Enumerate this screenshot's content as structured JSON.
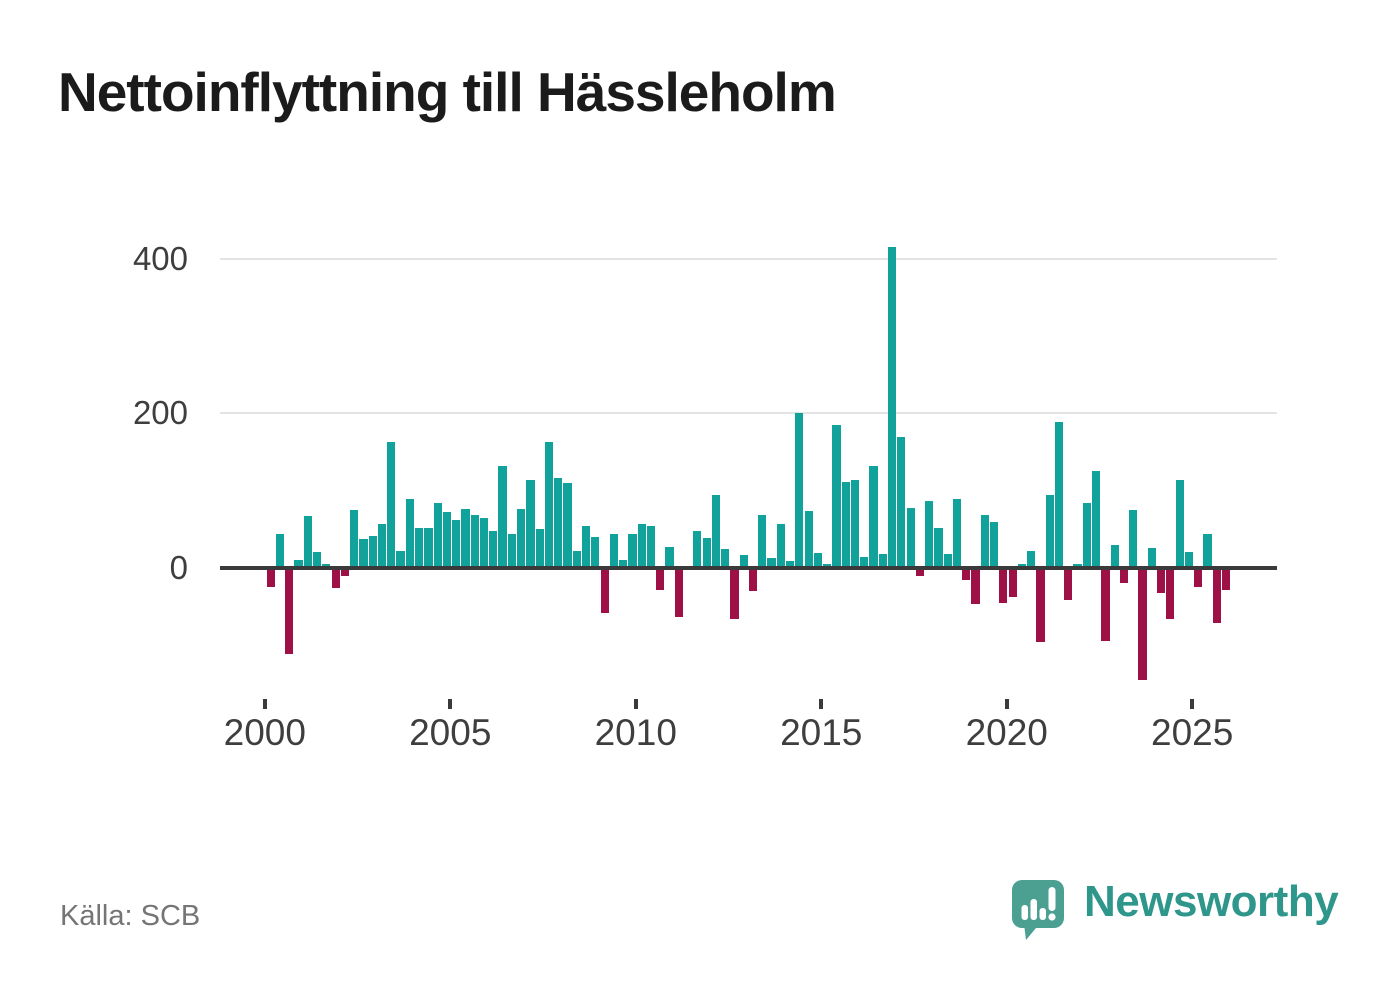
{
  "title": "Nettoinflyttning till Hässleholm",
  "source": "Källa: SCB",
  "brand": {
    "name": "Newsworthy",
    "icon": "newsworthy-speech-bubble-bar-chart-icon",
    "icon_color": "#4ba092",
    "wordmark_color": "#2f968b"
  },
  "chart_data": {
    "type": "bar",
    "title": "Nettoinflyttning till Hässleholm",
    "frequency": "quarterly",
    "x_tick_labels": [
      "2000",
      "2005",
      "2010",
      "2015",
      "2020",
      "2025"
    ],
    "x_tick_years": [
      2000,
      2005,
      2010,
      2015,
      2020,
      2025
    ],
    "y_ticks": [
      0,
      200,
      400
    ],
    "ylim": [
      -160,
      420
    ],
    "grid": "horizontal-only",
    "legend": "none",
    "colors": {
      "positive": "#10a29b",
      "negative": "#9d1146"
    },
    "start_year": 2000,
    "series_by_year": [
      {
        "year": 2000,
        "quarters": [
          -22,
          43,
          -110,
          10
        ]
      },
      {
        "year": 2001,
        "quarters": [
          67,
          20,
          4,
          -24
        ]
      },
      {
        "year": 2002,
        "quarters": [
          -8,
          74,
          37,
          41
        ]
      },
      {
        "year": 2003,
        "quarters": [
          56,
          163,
          21,
          89
        ]
      },
      {
        "year": 2004,
        "quarters": [
          51,
          51,
          84,
          72
        ]
      },
      {
        "year": 2005,
        "quarters": [
          62,
          76,
          68,
          64
        ]
      },
      {
        "year": 2006,
        "quarters": [
          48,
          131,
          43,
          76
        ]
      },
      {
        "year": 2007,
        "quarters": [
          114,
          50,
          163,
          116
        ]
      },
      {
        "year": 2008,
        "quarters": [
          110,
          21,
          54,
          39
        ]
      },
      {
        "year": 2009,
        "quarters": [
          -56,
          44,
          10,
          44
        ]
      },
      {
        "year": 2010,
        "quarters": [
          56,
          54,
          -26,
          26
        ]
      },
      {
        "year": 2011,
        "quarters": [
          -61,
          1,
          48,
          38
        ]
      },
      {
        "year": 2012,
        "quarters": [
          94,
          24,
          -64,
          16
        ]
      },
      {
        "year": 2013,
        "quarters": [
          -28,
          68,
          13,
          57
        ]
      },
      {
        "year": 2014,
        "quarters": [
          8,
          200,
          73,
          19
        ]
      },
      {
        "year": 2015,
        "quarters": [
          5,
          185,
          111,
          114
        ]
      },
      {
        "year": 2016,
        "quarters": [
          14,
          132,
          17,
          415
        ]
      },
      {
        "year": 2017,
        "quarters": [
          169,
          77,
          -8,
          86
        ]
      },
      {
        "year": 2018,
        "quarters": [
          51,
          17,
          89,
          -14
        ]
      },
      {
        "year": 2019,
        "quarters": [
          -45,
          68,
          59,
          -43
        ]
      },
      {
        "year": 2020,
        "quarters": [
          -35,
          4,
          22,
          -94
        ]
      },
      {
        "year": 2021,
        "quarters": [
          94,
          189,
          -39,
          4
        ]
      },
      {
        "year": 2022,
        "quarters": [
          84,
          125,
          -92,
          29
        ]
      },
      {
        "year": 2023,
        "quarters": [
          -17,
          74,
          -143,
          25
        ]
      },
      {
        "year": 2024,
        "quarters": [
          -30,
          -64,
          113,
          20
        ]
      },
      {
        "year": 2025,
        "quarters": [
          -23,
          43,
          -69,
          -26
        ]
      }
    ]
  }
}
